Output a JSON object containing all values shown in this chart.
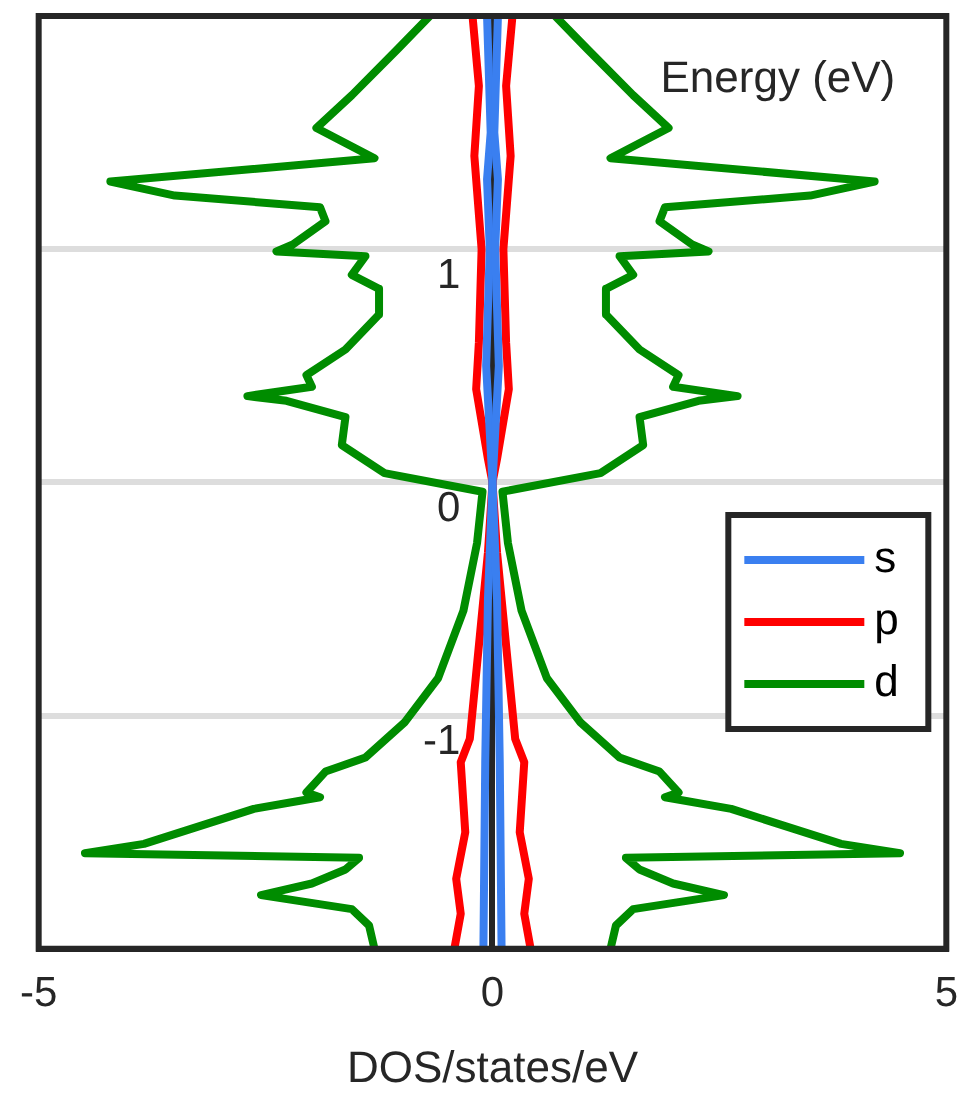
{
  "chart_data": {
    "type": "line",
    "xlabel": "DOS/states/eV",
    "ylabel": "Energy (eV)",
    "xlim": [
      -5,
      5
    ],
    "xticks": [
      -5,
      0,
      5
    ],
    "ylim": [
      -2,
      2
    ],
    "yticks": [
      -1,
      0,
      1
    ],
    "grid": "y",
    "legend": "right",
    "marker": "none",
    "line_style": "solid",
    "series": [
      {
        "name": "s",
        "color": "#3a7ff0",
        "x": [
          0.06,
          0.02,
          0.06,
          0.03,
          0.07,
          0,
          0.05,
          0.08,
          0.1
        ],
        "values": [
          2,
          1.5,
          1.3,
          1.0,
          0.5,
          0,
          -0.5,
          -1.2,
          -2
        ]
      },
      {
        "color": "#3a7ff0",
        "x": [
          -0.06,
          -0.02,
          -0.06,
          -0.03,
          -0.07,
          0,
          -0.05,
          -0.08,
          -0.1
        ],
        "values": [
          2,
          1.5,
          1.3,
          1.0,
          0.5,
          0,
          -0.5,
          -1.2,
          -2
        ]
      },
      {
        "name": "p",
        "color": "#ff0000",
        "x": [
          0.22,
          0.15,
          0.2,
          0.12,
          0.15,
          0.18,
          0.05,
          0,
          0.05,
          0.15,
          0.25,
          0.35,
          0.3,
          0.4,
          0.35,
          0.42
        ],
        "values": [
          2,
          1.7,
          1.4,
          1.0,
          0.6,
          0.4,
          0.1,
          0,
          -0.3,
          -0.7,
          -1.1,
          -1.2,
          -1.5,
          -1.7,
          -1.85,
          -2
        ]
      },
      {
        "color": "#ff0000",
        "x": [
          -0.22,
          -0.15,
          -0.2,
          -0.12,
          -0.15,
          -0.18,
          -0.05,
          0,
          -0.05,
          -0.15,
          -0.25,
          -0.35,
          -0.3,
          -0.4,
          -0.35,
          -0.42
        ],
        "values": [
          2,
          1.7,
          1.4,
          1.0,
          0.6,
          0.4,
          0.1,
          0,
          -0.3,
          -0.7,
          -1.1,
          -1.2,
          -1.5,
          -1.7,
          -1.85,
          -2
        ]
      },
      {
        "name": "d",
        "color": "#008c00",
        "x": [
          0.69,
          1.04,
          1.55,
          1.94,
          1.3,
          4.21,
          3.5,
          1.9,
          1.84,
          2.2,
          2.38,
          1.4,
          1.55,
          1.25,
          1.25,
          1.62,
          2.05,
          1.99,
          2.7,
          2.27,
          1.62,
          1.66,
          1.19,
          0.11,
          0.17,
          0.32,
          0.6,
          0.97,
          1.4,
          1.84,
          2.05,
          1.9,
          2.63,
          3.84,
          4.49,
          1.47,
          1.62,
          1.99,
          2.55,
          1.55,
          1.36,
          1.3
        ],
        "values": [
          2.0,
          1.86,
          1.66,
          1.52,
          1.39,
          1.29,
          1.23,
          1.18,
          1.12,
          1.02,
          0.99,
          0.97,
          0.89,
          0.83,
          0.72,
          0.57,
          0.46,
          0.41,
          0.37,
          0.35,
          0.28,
          0.16,
          0.04,
          -0.04,
          -0.26,
          -0.55,
          -0.84,
          -1.03,
          -1.18,
          -1.24,
          -1.33,
          -1.35,
          -1.4,
          -1.55,
          -1.59,
          -1.61,
          -1.66,
          -1.72,
          -1.77,
          -1.83,
          -1.9,
          -2.0
        ]
      },
      {
        "color": "#008c00",
        "x": [
          -0.69,
          -1.04,
          -1.55,
          -1.94,
          -1.3,
          -4.21,
          -3.5,
          -1.9,
          -1.84,
          -2.2,
          -2.38,
          -1.4,
          -1.55,
          -1.25,
          -1.25,
          -1.62,
          -2.05,
          -1.99,
          -2.7,
          -2.27,
          -1.62,
          -1.66,
          -1.19,
          -0.11,
          -0.17,
          -0.32,
          -0.6,
          -0.97,
          -1.4,
          -1.84,
          -2.05,
          -1.9,
          -2.63,
          -3.84,
          -4.49,
          -1.47,
          -1.62,
          -1.99,
          -2.55,
          -1.55,
          -1.36,
          -1.3
        ],
        "values": [
          2.0,
          1.86,
          1.66,
          1.52,
          1.39,
          1.29,
          1.23,
          1.18,
          1.12,
          1.02,
          0.99,
          0.97,
          0.89,
          0.83,
          0.72,
          0.57,
          0.46,
          0.41,
          0.37,
          0.35,
          0.28,
          0.16,
          0.04,
          -0.04,
          -0.26,
          -0.55,
          -0.84,
          -1.03,
          -1.18,
          -1.24,
          -1.33,
          -1.35,
          -1.4,
          -1.55,
          -1.59,
          -1.61,
          -1.66,
          -1.72,
          -1.77,
          -1.83,
          -1.9,
          -2.0
        ]
      }
    ]
  }
}
